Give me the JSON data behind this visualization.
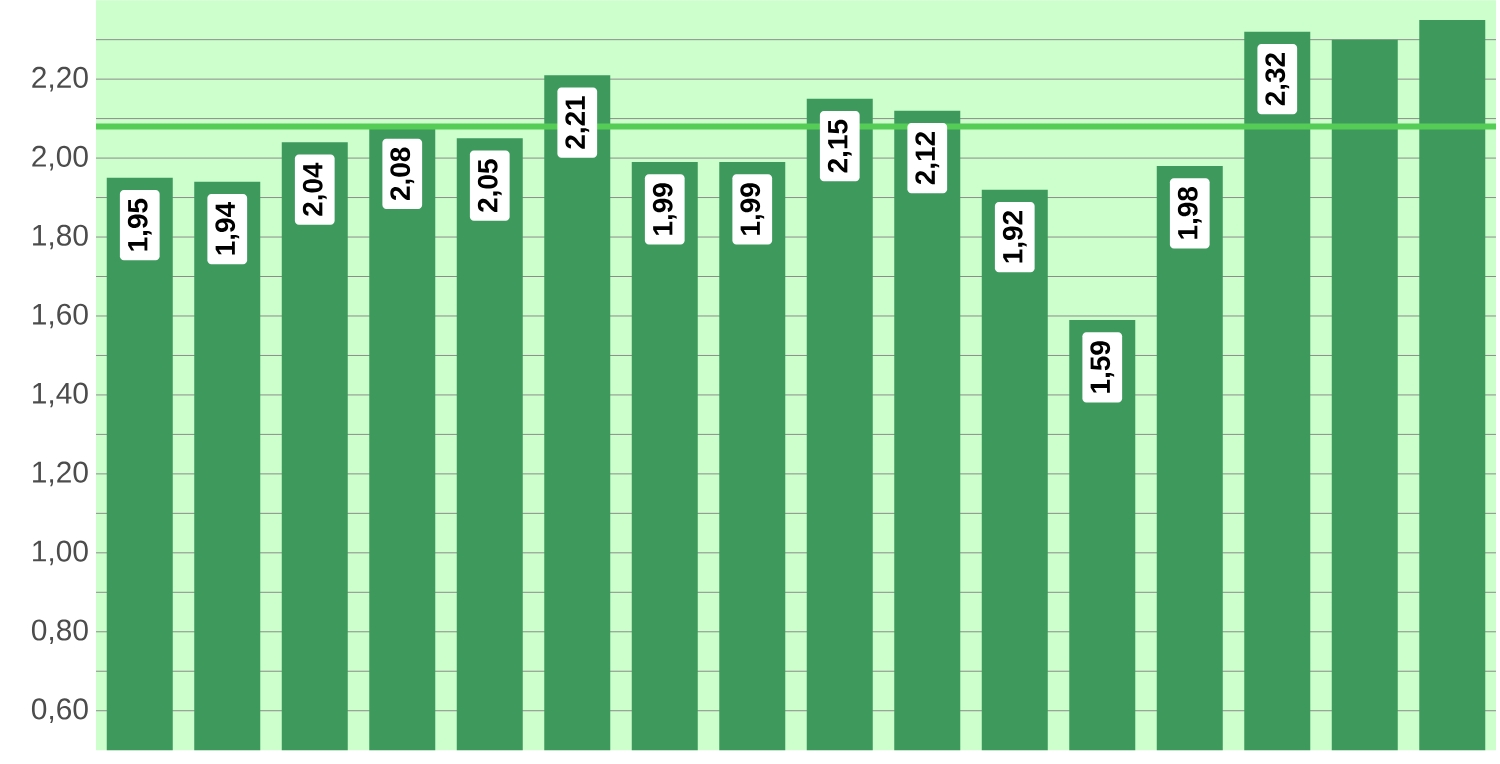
{
  "chart_data": {
    "type": "bar",
    "categories": [
      null,
      null,
      null,
      null,
      null,
      null,
      null,
      null,
      null,
      null,
      null,
      null,
      null,
      null,
      null,
      null
    ],
    "values": [
      1.95,
      1.94,
      2.04,
      2.08,
      2.05,
      2.21,
      1.99,
      1.99,
      2.15,
      2.12,
      1.92,
      1.59,
      1.98,
      2.32,
      2.3,
      2.35
    ],
    "value_labels": [
      "1,95",
      "1,94",
      "2,04",
      "2,08",
      "2,05",
      "2,21",
      "1,99",
      "1,99",
      "2,15",
      "2,12",
      "1,92",
      "1,59",
      "1,98",
      "2,32",
      null,
      null
    ],
    "color": "#3d9a5c",
    "ylim": [
      0.5,
      2.4
    ],
    "yticks": [
      {
        "value": 0.6,
        "label": "0,60"
      },
      {
        "value": 0.7,
        "label": null
      },
      {
        "value": 0.8,
        "label": "0,80"
      },
      {
        "value": 0.9,
        "label": null
      },
      {
        "value": 1.0,
        "label": "1,00"
      },
      {
        "value": 1.1,
        "label": null
      },
      {
        "value": 1.2,
        "label": "1,20"
      },
      {
        "value": 1.3,
        "label": null
      },
      {
        "value": 1.4,
        "label": "1,40"
      },
      {
        "value": 1.5,
        "label": null
      },
      {
        "value": 1.6,
        "label": "1,60"
      },
      {
        "value": 1.7,
        "label": null
      },
      {
        "value": 1.8,
        "label": "1,80"
      },
      {
        "value": 1.9,
        "label": null
      },
      {
        "value": 2.0,
        "label": "2,00"
      },
      {
        "value": 2.1,
        "label": null
      },
      {
        "value": 2.2,
        "label": "2,20"
      },
      {
        "value": 2.3,
        "label": null
      }
    ],
    "ref_lines": [
      {
        "axis": "y",
        "value": 2.08,
        "color": "#55cc55"
      }
    ],
    "grid": "y"
  }
}
